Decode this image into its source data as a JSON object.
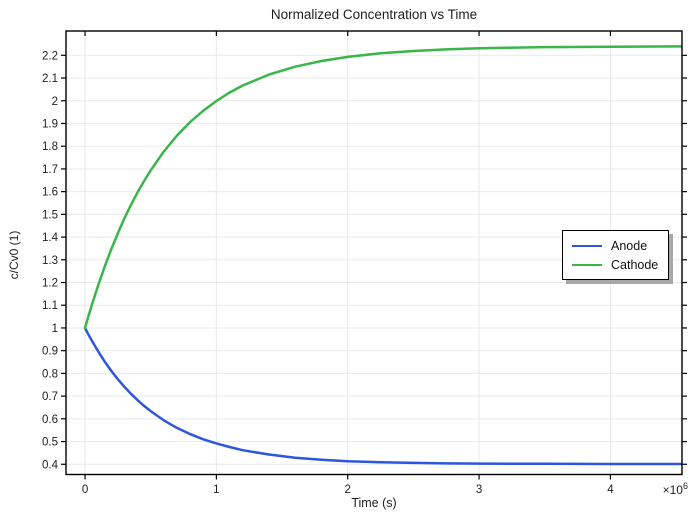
{
  "chart_data": {
    "type": "line",
    "title": "Normalized Concentration vs Time",
    "xlabel": "Time (s)",
    "ylabel": "c/Cv0 (1)",
    "x_axis_multiplier_label": {
      "base": "×10",
      "exponent": "6"
    },
    "x_unit_multiplier": 1000000,
    "xlim": [
      -0.145,
      4.545
    ],
    "ylim": [
      0.355,
      2.307
    ],
    "grid": true,
    "grid_color": "#e9e9e9",
    "frame_color": "#000000",
    "tick_color": "#000000",
    "text_color": "#1f1f1f",
    "background_color": "#ffffff",
    "legend_position": "right-middle",
    "legend_shadow_color": "#a8a8a8",
    "x_ticks": [
      {
        "value": 0,
        "label": "0"
      },
      {
        "value": 1,
        "label": "1"
      },
      {
        "value": 2,
        "label": "2"
      },
      {
        "value": 3,
        "label": "3"
      },
      {
        "value": 4,
        "label": "4"
      }
    ],
    "y_ticks": [
      {
        "value": 0.4,
        "label": "0.4"
      },
      {
        "value": 0.5,
        "label": "0.5"
      },
      {
        "value": 0.6,
        "label": "0.6"
      },
      {
        "value": 0.7,
        "label": "0.7"
      },
      {
        "value": 0.8,
        "label": "0.8"
      },
      {
        "value": 0.9,
        "label": "0.9"
      },
      {
        "value": 1.0,
        "label": "1"
      },
      {
        "value": 1.1,
        "label": "1.1"
      },
      {
        "value": 1.2,
        "label": "1.2"
      },
      {
        "value": 1.3,
        "label": "1.3"
      },
      {
        "value": 1.4,
        "label": "1.4"
      },
      {
        "value": 1.5,
        "label": "1.5"
      },
      {
        "value": 1.6,
        "label": "1.6"
      },
      {
        "value": 1.7,
        "label": "1.7"
      },
      {
        "value": 1.8,
        "label": "1.8"
      },
      {
        "value": 1.9,
        "label": "1.9"
      },
      {
        "value": 2.0,
        "label": "2"
      },
      {
        "value": 2.1,
        "label": "2.1"
      },
      {
        "value": 2.2,
        "label": "2.2"
      }
    ],
    "x": [
      0,
      0.025,
      0.05,
      0.1,
      0.15,
      0.2,
      0.25,
      0.3,
      0.35,
      0.4,
      0.45,
      0.5,
      0.6,
      0.7,
      0.8,
      0.9,
      1.0,
      1.1,
      1.2,
      1.4,
      1.6,
      1.8,
      2.0,
      2.25,
      2.5,
      2.75,
      3.0,
      3.5,
      4.0,
      4.55
    ],
    "series": [
      {
        "name": "Anode",
        "color": "#2d56e0",
        "values": [
          1.0,
          0.972,
          0.946,
          0.897,
          0.852,
          0.811,
          0.774,
          0.741,
          0.71,
          0.682,
          0.657,
          0.634,
          0.593,
          0.56,
          0.533,
          0.51,
          0.492,
          0.476,
          0.462,
          0.443,
          0.429,
          0.42,
          0.413,
          0.409,
          0.406,
          0.404,
          0.403,
          0.402,
          0.401,
          0.401
        ]
      },
      {
        "name": "Cathode",
        "color": "#3ab54a",
        "values": [
          1.0,
          1.05,
          1.098,
          1.188,
          1.27,
          1.347,
          1.417,
          1.482,
          1.542,
          1.597,
          1.647,
          1.694,
          1.777,
          1.847,
          1.906,
          1.956,
          1.999,
          2.036,
          2.067,
          2.115,
          2.15,
          2.175,
          2.193,
          2.209,
          2.219,
          2.226,
          2.231,
          2.236,
          2.238,
          2.239
        ]
      }
    ]
  }
}
